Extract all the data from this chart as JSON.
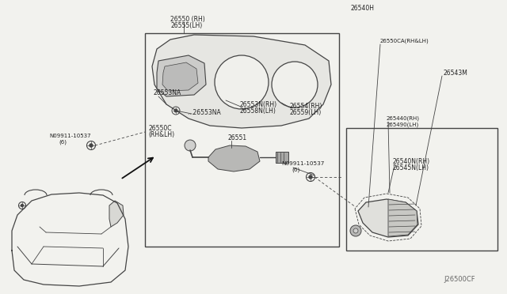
{
  "bg_color": "#f2f2ee",
  "line_color": "#444444",
  "text_color": "#222222",
  "diagram_code": "J26500CF",
  "label_26550": [
    "26550 (RH)",
    "26555(LH)"
  ],
  "label_26551": "26551",
  "label_26550c": [
    "26550C",
    "(RH&LH)"
  ],
  "label_26553na_1": "26553NA",
  "label_26553na_2": "…26553NA",
  "label_09911_top": [
    "Ν09911-10537",
    "(6)"
  ],
  "label_09911_left": [
    "Ν09911-10537",
    "(6)"
  ],
  "label_26553n": [
    "26553N(RH)",
    "26558N(LH)"
  ],
  "label_26554": [
    "26554(RH)",
    "26559(LH)"
  ],
  "label_26540h": "26540H",
  "label_26550ca": "26550CA(RH&LH)",
  "label_26543m": "26543M",
  "label_265440": [
    "265440(RH)",
    "265490(LH)"
  ],
  "label_26540n": [
    "26540N(RH)",
    "26545N(LH)"
  ]
}
